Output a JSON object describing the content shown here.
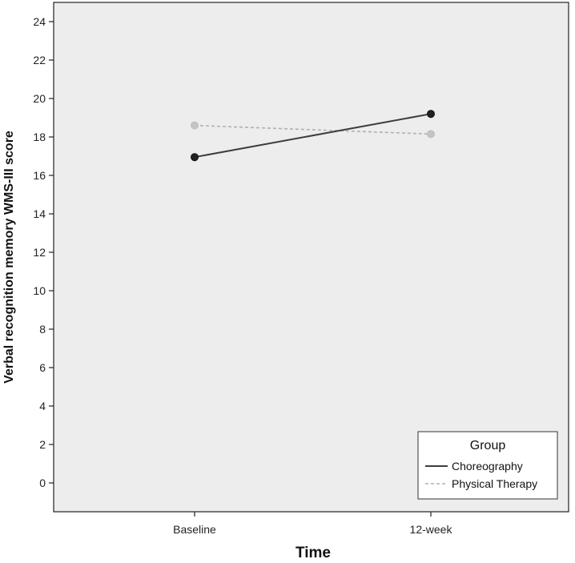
{
  "chart_data": {
    "type": "line",
    "xlabel": "Time",
    "ylabel": "Verbal recognition memory WMS-III score",
    "categories": [
      "Baseline",
      "12-week"
    ],
    "ylim": [
      -1.5,
      25
    ],
    "yticks": [
      0,
      2,
      4,
      6,
      8,
      10,
      12,
      14,
      16,
      18,
      20,
      22,
      24
    ],
    "grid": false,
    "legend": {
      "title": "Group",
      "position": "bottom-right"
    },
    "series": [
      {
        "name": "Choreography",
        "values": [
          16.95,
          19.2
        ],
        "color": "#3d3d3d",
        "line_style": "solid",
        "marker_color": "#222222"
      },
      {
        "name": "Physical Therapy",
        "values": [
          18.6,
          18.15
        ],
        "color": "#b0b0b0",
        "line_style": "dashed",
        "marker_color": "#c4c4c4"
      }
    ]
  },
  "colors": {
    "plot_background": "#ededed",
    "axis": "#222222"
  }
}
